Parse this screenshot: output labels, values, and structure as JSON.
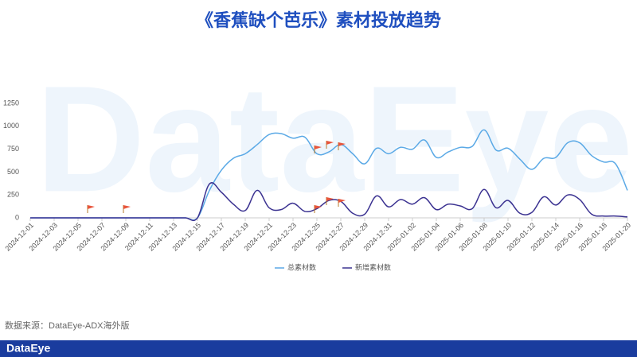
{
  "chart_data": {
    "type": "line",
    "title": "《香蕉缺个芭乐》素材投放趋势",
    "watermark": "DataEye",
    "source": "数据来源：DataEye-ADX海外版",
    "brand": "DataEye",
    "categories": [
      "2024-12-01",
      null,
      "2024-12-03",
      null,
      "2024-12-05",
      null,
      "2024-12-07",
      null,
      "2024-12-09",
      null,
      "2024-12-11",
      null,
      "2024-12-13",
      null,
      "2024-12-15",
      null,
      "2024-12-17",
      null,
      "2024-12-19",
      null,
      "2024-12-21",
      null,
      "2024-12-23",
      null,
      "2024-12-25",
      null,
      "2024-12-27",
      null,
      "2024-12-29",
      null,
      "2024-12-31",
      null,
      "2025-01-02",
      null,
      "2025-01-04",
      null,
      "2025-01-06",
      null,
      "2025-01-08",
      null,
      "2025-01-10",
      null,
      "2025-01-12",
      null,
      "2025-01-14",
      null,
      "2025-01-16",
      null,
      "2025-01-18",
      null,
      "2025-01-20"
    ],
    "series": [
      {
        "name": "总素材数",
        "color": "#5aa9e6",
        "values": [
          0,
          0,
          0,
          0,
          0,
          0,
          0,
          0,
          0,
          0,
          0,
          0,
          0,
          0,
          0,
          300,
          520,
          650,
          700,
          800,
          910,
          920,
          870,
          880,
          700,
          720,
          800,
          700,
          590,
          760,
          700,
          770,
          750,
          850,
          660,
          720,
          770,
          780,
          960,
          740,
          760,
          640,
          530,
          650,
          660,
          820,
          820,
          680,
          610,
          590,
          300
        ]
      },
      {
        "name": "新增素材数",
        "color": "#3b3291",
        "values": [
          0,
          0,
          0,
          0,
          0,
          0,
          0,
          0,
          0,
          0,
          0,
          0,
          0,
          0,
          0,
          370,
          280,
          150,
          80,
          300,
          110,
          90,
          160,
          70,
          100,
          190,
          180,
          50,
          40,
          240,
          120,
          200,
          150,
          220,
          90,
          150,
          130,
          100,
          310,
          110,
          190,
          50,
          60,
          230,
          140,
          250,
          200,
          40,
          20,
          20,
          10
        ]
      }
    ],
    "ylim": [
      0,
      1250
    ],
    "yticks": [
      0,
      250,
      500,
      750,
      1000,
      1250
    ],
    "grid": false
  }
}
